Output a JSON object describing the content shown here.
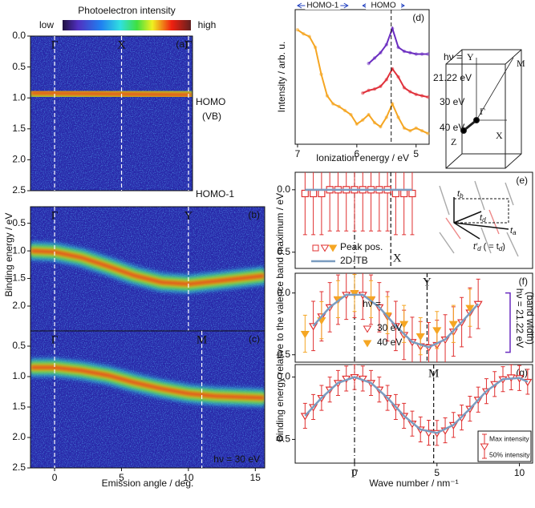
{
  "colorbar": {
    "title": "Photoelectron intensity",
    "low": "low",
    "high": "high"
  },
  "brillouin_zone": {
    "labels": [
      "Y",
      "M",
      "Γ",
      "X",
      "Z"
    ]
  },
  "chart_data": [
    {
      "type": "heatmap",
      "panel": "(a)",
      "xlim": [
        -1.8,
        10.3
      ],
      "ylim": [
        2.5,
        0
      ],
      "yticks": [
        {
          "value": 0,
          "label": "0.0"
        },
        0.5,
        {
          "value": 1,
          "label": "1.0"
        },
        1.5,
        {
          "value": 2,
          "label": "2.0"
        },
        2.5
      ],
      "points": [
        {
          "label": "Γ",
          "x": 0
        },
        {
          "label": "X",
          "x": 5
        },
        {
          "label": "Γ",
          "x": 10
        }
      ],
      "side_labels": [
        "HOMO",
        "(VB)",
        "HOMO-1"
      ],
      "bands": [
        {
          "x": [
            -1.8,
            10.3
          ],
          "y": [
            0.92,
            0.95
          ]
        },
        {
          "x": [
            -1.8,
            10.3
          ],
          "y": [
            2.4,
            2.4
          ]
        }
      ]
    },
    {
      "type": "heatmap",
      "panel": "(b)",
      "y_label": "Binding energy / eV",
      "xlim": [
        -1.8,
        15.7
      ],
      "ylim": [
        2.45,
        0.2
      ],
      "yticks": [
        0.5,
        {
          "value": 1,
          "label": "1.0"
        },
        1.5,
        {
          "value": 2,
          "label": "2.0"
        }
      ],
      "points": [
        {
          "label": "Γ",
          "x": 0
        },
        {
          "label": "Y",
          "x": 10
        }
      ],
      "bands": [
        {
          "x": [
            -1.8,
            0,
            2,
            4,
            6,
            8,
            10,
            12,
            15.7
          ],
          "y": [
            1.0,
            1.02,
            1.12,
            1.28,
            1.45,
            1.57,
            1.6,
            1.55,
            1.45
          ]
        }
      ]
    },
    {
      "type": "heatmap",
      "panel": "(c)",
      "x_label": "Emission angle / deg.",
      "note": "hν = 30 eV",
      "xlim": [
        -1.8,
        15.7
      ],
      "ylim": [
        2.5,
        0.25
      ],
      "xticks": [
        0,
        5,
        10,
        15
      ],
      "yticks": [
        0.5,
        {
          "value": 1,
          "label": "1.0"
        },
        1.5,
        {
          "value": 2,
          "label": "2.0"
        },
        2.5
      ],
      "points": [
        {
          "label": "Γ",
          "x": 0
        },
        {
          "label": "M",
          "x": 11
        }
      ],
      "bands": [
        {
          "x": [
            -1.8,
            0,
            2,
            4,
            6,
            8,
            10,
            12,
            15.7
          ],
          "y": [
            0.85,
            0.85,
            0.9,
            0.98,
            1.1,
            1.2,
            1.28,
            1.32,
            1.35
          ]
        },
        {
          "x": [
            -1.8,
            15.7
          ],
          "y": [
            2.35,
            2.35
          ]
        }
      ]
    },
    {
      "type": "line",
      "panel": "(d)",
      "x_label": "Ionization energy / eV",
      "y_label": "Intensity / arb. u.",
      "xlim": [
        7.04,
        4.78
      ],
      "ylim": [
        0,
        1
      ],
      "xticks": [
        7,
        6,
        5
      ],
      "legend_title": "hν =",
      "vline": 5.42,
      "regions": [
        {
          "label": "HOMO-1",
          "x": [
            7.0,
            6.15
          ]
        },
        {
          "label": "HOMO",
          "x": [
            5.9,
            5.2
          ]
        }
      ],
      "series": [
        {
          "name": "21.22 eV",
          "color": "#6a2cc0",
          "x": [
            5.8,
            5.7,
            5.6,
            5.5,
            5.4,
            5.3,
            5.2,
            5.1,
            5.0,
            4.9,
            4.8
          ],
          "values": [
            0.6,
            0.64,
            0.68,
            0.74,
            0.86,
            0.72,
            0.69,
            0.68,
            0.67,
            0.67,
            0.67
          ]
        },
        {
          "name": "30 eV",
          "color": "#e0303a",
          "x": [
            5.9,
            5.8,
            5.7,
            5.6,
            5.5,
            5.4,
            5.3,
            5.2,
            5.1,
            5.0,
            4.9,
            4.8
          ],
          "values": [
            0.38,
            0.4,
            0.41,
            0.43,
            0.48,
            0.56,
            0.5,
            0.42,
            0.39,
            0.37,
            0.36,
            0.35
          ]
        },
        {
          "name": "40 eV",
          "color": "#f5a623",
          "x": [
            7.0,
            6.9,
            6.8,
            6.7,
            6.6,
            6.5,
            6.4,
            6.3,
            6.2,
            6.1,
            6.0,
            5.9,
            5.8,
            5.7,
            5.6,
            5.5,
            5.4,
            5.3,
            5.2,
            5.1,
            5.0,
            4.9,
            4.8
          ],
          "values": [
            0.85,
            0.82,
            0.8,
            0.72,
            0.52,
            0.36,
            0.3,
            0.28,
            0.25,
            0.22,
            0.15,
            0.18,
            0.22,
            0.16,
            0.13,
            0.2,
            0.3,
            0.2,
            0.12,
            0.1,
            0.12,
            0.1,
            0.08
          ]
        }
      ]
    },
    {
      "type": "errorbar",
      "panel": "(e)",
      "xlim": [
        -3.6,
        10.8
      ],
      "ylim": [
        0.63,
        -0.14
      ],
      "yticks": [
        {
          "value": 0,
          "label": "0.0"
        },
        0.5
      ],
      "points": [
        {
          "label": null,
          "x": 0
        },
        {
          "label": "X",
          "x": 2.2
        }
      ],
      "inset_labels": [
        {
          "main": "t",
          "sub": "b"
        },
        {
          "main": "t",
          "sub": "d"
        },
        {
          "main": "t",
          "sub": "a"
        },
        {
          "main": "t′",
          "sub": "d",
          "note": "( = t",
          "note_sub": "d",
          "note_end": ")"
        }
      ],
      "series": [
        {
          "name": "Peak pos.",
          "marker": "square",
          "color": "#e03030",
          "x": [
            -3,
            -2.5,
            -2,
            -1.5,
            -1,
            -0.5,
            0,
            0.5,
            1,
            1.5,
            2,
            2.5,
            3,
            3.5
          ],
          "values": [
            0.03,
            0.03,
            0.03,
            0,
            0,
            0,
            0,
            0,
            0,
            0,
            0,
            0.03,
            0.03,
            0.03
          ],
          "errors": [
            0.33,
            0.33,
            0.33,
            0.33,
            0.33,
            0.33,
            0.33,
            0.33,
            0.33,
            0.33,
            0.33,
            0.33,
            0.33,
            0.33
          ]
        },
        {
          "name": "2D-TB",
          "type": "line",
          "color": "#7a9cc0",
          "x": [
            -3,
            3.5
          ],
          "values": [
            0,
            0
          ]
        }
      ]
    },
    {
      "type": "errorbar",
      "panel": "(f)",
      "y_label": "Binding energy relative to the valence band maximum / eV",
      "xlim": [
        -3.6,
        10.8
      ],
      "ylim": [
        0.56,
        -0.16
      ],
      "yticks": [
        {
          "value": 0,
          "label": "0.0"
        },
        0.5
      ],
      "legend_title": "hν =",
      "side_note": [
        "hν = 21.22 eV",
        "(band width)"
      ],
      "band_width_range": [
        0,
        0.48
      ],
      "points": [
        {
          "label": null,
          "x": 0
        },
        {
          "label": "Y",
          "x": 4.4
        }
      ],
      "series": [
        {
          "name": "30 eV",
          "marker": "tri-open",
          "color": "#e03030",
          "x": [
            -2.5,
            -2,
            -1.5,
            -1,
            -0.5,
            0,
            0.5,
            1,
            1.5,
            2,
            2.5,
            3,
            3.5,
            4,
            4.5,
            5,
            5.5,
            6,
            6.5,
            7,
            7.5
          ],
          "values": [
            0.267,
            0.189,
            0.115,
            0.054,
            0.014,
            0,
            0.014,
            0.054,
            0.115,
            0.189,
            0.267,
            0.339,
            0.396,
            0.431,
            0.439,
            0.42,
            0.376,
            0.312,
            0.236,
            0.158,
            0.088
          ],
          "errors": [
            0.2,
            0.2,
            0.2,
            0.2,
            0.2,
            0.2,
            0.2,
            0.2,
            0.2,
            0.2,
            0.2,
            0.2,
            0.2,
            0.2,
            0.2,
            0.2,
            0.2,
            0.2,
            0.2,
            0.2,
            0.2
          ]
        },
        {
          "name": "40 eV",
          "marker": "tri-filled",
          "color": "#f5a623",
          "x": [
            -3,
            -2,
            -1,
            0,
            1,
            2,
            3,
            4,
            5,
            6,
            7
          ],
          "values": [
            0.33,
            0.22,
            0.05,
            0,
            0.05,
            0.18,
            0.25,
            0.35,
            0.3,
            0.25,
            0.12
          ],
          "errors": [
            0.15,
            0.15,
            0.15,
            0.15,
            0.15,
            0.15,
            0.15,
            0.15,
            0.15,
            0.15,
            0.15
          ]
        },
        {
          "type": "line",
          "color": "#7a9cc0",
          "x": [
            -2.5,
            -1.5,
            -0.5,
            0.5,
            1.5,
            2.5,
            3.5,
            4.5,
            5.5,
            6.5,
            7.5
          ],
          "values": [
            0.267,
            0.115,
            0.014,
            0.014,
            0.115,
            0.267,
            0.396,
            0.439,
            0.376,
            0.236,
            0.088
          ]
        }
      ]
    },
    {
      "type": "errorbar",
      "panel": "(g)",
      "x_label": "Wave number / nm⁻¹",
      "xlim": [
        -3.6,
        10.8
      ],
      "ylim": [
        0.69,
        -0.1
      ],
      "xticks": [
        0,
        5,
        10
      ],
      "yticks": [
        {
          "value": 0,
          "label": "0.0"
        },
        0.5
      ],
      "error_legend": [
        "Max intensity",
        "50% intensity"
      ],
      "points": [
        {
          "label": "Γ",
          "x": 0
        },
        {
          "label": "M",
          "x": 4.8
        }
      ],
      "series": [
        {
          "marker": "tri-open",
          "color": "#e03030",
          "x": [
            -3,
            -2.5,
            -2,
            -1.5,
            -1,
            -0.5,
            0,
            0.5,
            1,
            1.5,
            2,
            2.5,
            3,
            3.5,
            4,
            4.5,
            5,
            5.5,
            6,
            6.5,
            7,
            7.5,
            8,
            8.5,
            9,
            9.5,
            10,
            10.5
          ],
          "values": [
            0.311,
            0.24,
            0.167,
            0.1,
            0.047,
            0.012,
            0,
            0.012,
            0.047,
            0.1,
            0.167,
            0.24,
            0.311,
            0.373,
            0.42,
            0.446,
            0.448,
            0.427,
            0.384,
            0.324,
            0.254,
            0.181,
            0.113,
            0.056,
            0.017,
            0.002,
            0.008,
            0.038
          ],
          "errors": [
            0.1,
            0.1,
            0.1,
            0.1,
            0.1,
            0.1,
            0.1,
            0.1,
            0.1,
            0.1,
            0.1,
            0.1,
            0.1,
            0.1,
            0.1,
            0.1,
            0.1,
            0.1,
            0.1,
            0.1,
            0.1,
            0.1,
            0.1,
            0.1,
            0.1,
            0.1,
            0.1,
            0.1
          ]
        },
        {
          "type": "line",
          "color": "#7a9cc0",
          "x": [
            -3,
            -2,
            -1,
            0,
            1,
            2,
            3,
            4,
            5,
            6,
            7,
            8,
            9,
            10,
            10.5
          ],
          "values": [
            0.311,
            0.167,
            0.047,
            0,
            0.047,
            0.167,
            0.311,
            0.42,
            0.448,
            0.384,
            0.254,
            0.113,
            0.017,
            0.008,
            0.038
          ]
        }
      ]
    }
  ]
}
